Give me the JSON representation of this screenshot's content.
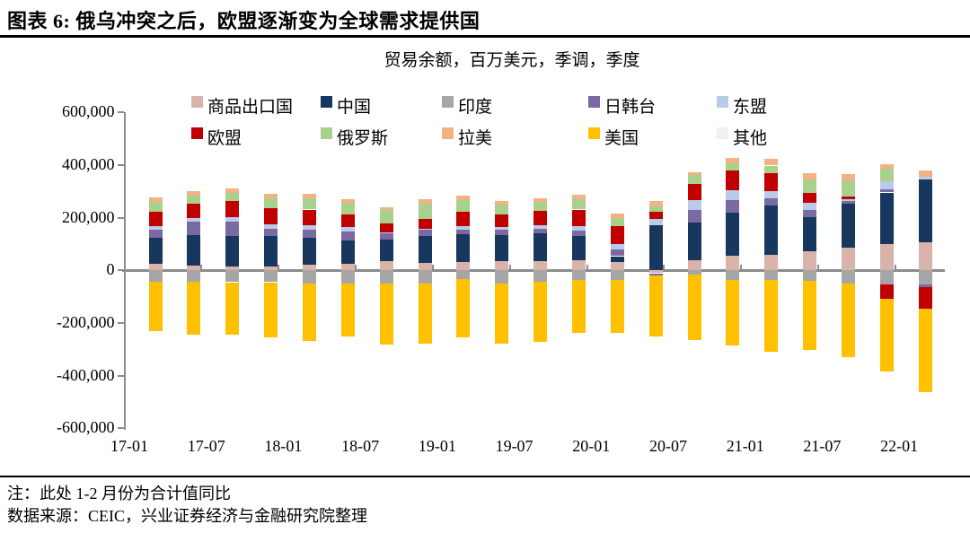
{
  "header": {
    "title": "图表 6: 俄乌冲突之后，欧盟逐渐变为全球需求提供国"
  },
  "subtitle": "贸易余额，百万美元，季调，季度",
  "notes": {
    "note1": "注：此处 1-2 月份为合计值同比",
    "note2": "数据来源：CEIC，兴业证券经济与金融研究院整理"
  },
  "chart_data": {
    "type": "bar",
    "stacked": true,
    "title": "贸易余额，百万美元，季调，季度",
    "grid": false,
    "legend_position": "top",
    "background": "#ffffff",
    "axis_color": "#8c8c8c",
    "categories": [
      "17-01",
      "17-04",
      "17-07",
      "17-10",
      "18-01",
      "18-04",
      "18-07",
      "18-10",
      "19-01",
      "19-04",
      "19-07",
      "19-10",
      "20-01",
      "20-04",
      "20-07",
      "20-10",
      "21-01",
      "21-04",
      "21-07",
      "21-10",
      "22-01"
    ],
    "x_tick_labels": [
      "17-01",
      "17-07",
      "18-01",
      "18-07",
      "19-01",
      "19-07",
      "20-01",
      "20-07",
      "21-01",
      "21-07",
      "22-01"
    ],
    "ylim": [
      -600000,
      600000
    ],
    "y_ticks": [
      600000,
      400000,
      200000,
      0,
      -200000,
      -400000,
      -600000
    ],
    "y_tick_labels": [
      "600,000",
      "400,000",
      "200,000",
      "0",
      "-200,000",
      "-400,000",
      "-600,000"
    ],
    "series": [
      {
        "id": "commodity-exporters",
        "name": "商品出口国",
        "color": "#d9b3aa",
        "values": [
          26000,
          19000,
          15000,
          15000,
          22000,
          26000,
          34000,
          28000,
          31000,
          36000,
          34000,
          37000,
          31000,
          -11000,
          39000,
          56000,
          60000,
          73000,
          85000,
          101000,
          107000
        ]
      },
      {
        "id": "china",
        "name": "中国",
        "color": "#17375e",
        "values": [
          98000,
          116000,
          117000,
          115000,
          101000,
          89000,
          83000,
          102000,
          106000,
          99000,
          107000,
          95000,
          23000,
          172000,
          143000,
          164000,
          185000,
          130000,
          168000,
          195000,
          237000
        ]
      },
      {
        "id": "india",
        "name": "印度",
        "color": "#a6a6a6",
        "values": [
          -42000,
          -42000,
          -45000,
          -45000,
          -49000,
          -49000,
          -49000,
          -51000,
          -34000,
          -51000,
          -43000,
          -36000,
          -36000,
          0,
          -17000,
          -36000,
          -38000,
          -40000,
          -51000,
          -54000,
          -53000
        ]
      },
      {
        "id": "japan-korea-taiwan",
        "name": "日韩台",
        "color": "#7a6aa3",
        "values": [
          31000,
          49000,
          52000,
          28000,
          31000,
          34000,
          24000,
          25000,
          18000,
          19000,
          17000,
          18000,
          27000,
          -8000,
          49000,
          48000,
          30000,
          25000,
          11000,
          11000,
          -12000
        ]
      },
      {
        "id": "asean",
        "name": "东盟",
        "color": "#b9cbe8",
        "values": [
          12000,
          16000,
          19000,
          17000,
          18000,
          15000,
          3000,
          3000,
          14000,
          11000,
          15000,
          17000,
          20000,
          23000,
          37000,
          35000,
          25000,
          28000,
          6000,
          32000,
          11000
        ]
      },
      {
        "id": "eu",
        "name": "欧盟",
        "color": "#c00000",
        "values": [
          55000,
          54000,
          59000,
          62000,
          59000,
          48000,
          34000,
          36000,
          53000,
          46000,
          53000,
          64000,
          68000,
          29000,
          59000,
          76000,
          69000,
          37000,
          10000,
          -53000,
          -79000
        ]
      },
      {
        "id": "russia",
        "name": "俄罗斯",
        "color": "#a9d18e",
        "values": [
          37000,
          31000,
          32000,
          37000,
          43000,
          46000,
          51000,
          60000,
          46000,
          38000,
          34000,
          40000,
          31000,
          19000,
          34000,
          28000,
          29000,
          51000,
          61000,
          48000,
          0
        ]
      },
      {
        "id": "latam",
        "name": "拉美",
        "color": "#f4b183",
        "values": [
          19000,
          17000,
          17000,
          16000,
          16000,
          14000,
          12000,
          15000,
          17000,
          15000,
          15000,
          17000,
          15000,
          19000,
          13000,
          19000,
          25000,
          25000,
          26000,
          15000,
          23000
        ]
      },
      {
        "id": "usa",
        "name": "美国",
        "color": "#ffc000",
        "values": [
          -190000,
          -201000,
          -200000,
          -209000,
          -219000,
          -203000,
          -234000,
          -228000,
          -220000,
          -228000,
          -228000,
          -201000,
          -201000,
          -232000,
          -249000,
          -249000,
          -271000,
          -263000,
          -279000,
          -277000,
          -319000
        ]
      },
      {
        "id": "other",
        "name": "其他",
        "color": "#f0f0f0",
        "values": [
          0,
          0,
          0,
          0,
          0,
          0,
          0,
          0,
          0,
          0,
          0,
          0,
          0,
          0,
          0,
          0,
          0,
          0,
          0,
          0,
          0
        ]
      }
    ]
  }
}
